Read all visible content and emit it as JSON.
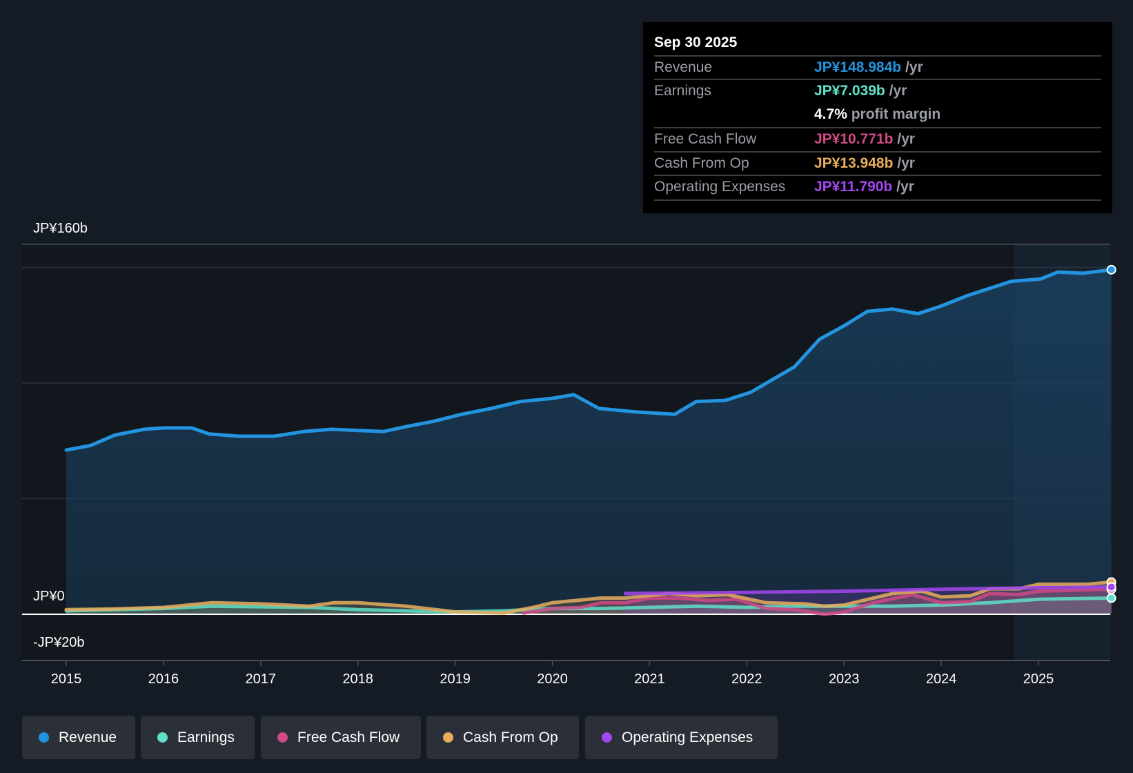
{
  "tooltip": {
    "date": "Sep 30 2025",
    "rows": [
      {
        "label": "Revenue",
        "value": "JP¥148.984b",
        "unit": "/yr",
        "color": "#2394df"
      },
      {
        "label": "Earnings",
        "value": "JP¥7.039b",
        "unit": "/yr",
        "color": "#5ee1c8"
      },
      {
        "label": "",
        "value": "4.7%",
        "unit": "profit margin",
        "color": "#ffffff"
      },
      {
        "label": "Free Cash Flow",
        "value": "JP¥10.771b",
        "unit": "/yr",
        "color": "#cf4a86"
      },
      {
        "label": "Cash From Op",
        "value": "JP¥13.948b",
        "unit": "/yr",
        "color": "#e8ad5d"
      },
      {
        "label": "Operating Expenses",
        "value": "JP¥11.790b",
        "unit": "/yr",
        "color": "#a347ee"
      }
    ]
  },
  "chart_data": {
    "type": "area",
    "title": "",
    "ylabel": "",
    "xlabel": "",
    "ylim": [
      -20,
      160
    ],
    "y_tick_labels": {
      "top": "JP¥160b",
      "zero": "JP¥0",
      "bottom": "-JP¥20b"
    },
    "gridlines": [
      50,
      100,
      150,
      160
    ],
    "x_ticks": [
      "2015",
      "2016",
      "2017",
      "2018",
      "2019",
      "2020",
      "2021",
      "2022",
      "2023",
      "2024",
      "2025"
    ],
    "forecast_shade_from": 2024.75,
    "series": [
      {
        "name": "Revenue",
        "color": "#2394df",
        "x": [
          2015,
          2015.25,
          2015.5,
          2015.8,
          2016,
          2016.29,
          2016.47,
          2016.77,
          2017.14,
          2017.44,
          2017.73,
          2018.26,
          2018.48,
          2018.78,
          2019.07,
          2019.37,
          2019.67,
          2020,
          2020.22,
          2020.48,
          2020.86,
          2021.26,
          2021.48,
          2021.78,
          2022.04,
          2022.49,
          2022.75,
          2023.01,
          2023.24,
          2023.5,
          2023.76,
          2023.98,
          2024.28,
          2024.72,
          2025.02,
          2025.2,
          2025.46,
          2025.75
        ],
        "values": [
          71,
          73,
          77.5,
          80,
          80.6,
          80.6,
          78,
          77,
          77,
          79,
          80,
          79,
          81,
          83.5,
          86.5,
          89,
          92,
          93.4,
          95,
          89,
          87.5,
          86.5,
          92,
          92.5,
          96,
          107,
          119,
          125,
          131,
          132,
          130,
          133,
          138,
          144,
          145,
          148,
          147.5,
          149
        ]
      },
      {
        "name": "Earnings",
        "color": "#5ee1c8",
        "x": [
          2015,
          2016,
          2016.5,
          2017.5,
          2018,
          2018.5,
          2019,
          2019.5,
          2020,
          2020.5,
          2021,
          2021.5,
          2022,
          2022.5,
          2023,
          2023.5,
          2024,
          2024.5,
          2025,
          2025.75
        ],
        "values": [
          1.5,
          2.5,
          3.5,
          3,
          2,
          1.5,
          1,
          1.5,
          2.5,
          2.5,
          3,
          3.5,
          3,
          3.5,
          3.5,
          3.5,
          4,
          5,
          6.5,
          7.0
        ]
      },
      {
        "name": "Free Cash Flow",
        "color": "#cf4a86",
        "x": [
          2019.7,
          2020,
          2020.3,
          2020.5,
          2020.75,
          2021,
          2021.3,
          2021.6,
          2021.9,
          2022.2,
          2022.5,
          2022.8,
          2023,
          2023.3,
          2023.7,
          2024,
          2024.3,
          2024.5,
          2024.8,
          2025,
          2025.75
        ],
        "values": [
          0.5,
          2.5,
          3,
          5,
          5,
          7,
          7,
          6,
          6.5,
          2.5,
          2,
          0,
          1,
          5,
          8.5,
          5,
          5.5,
          9,
          8.5,
          10,
          10.8
        ]
      },
      {
        "name": "Cash From Op",
        "color": "#e8ad5d",
        "x": [
          2015,
          2015.5,
          2016,
          2016.5,
          2017,
          2017.5,
          2017.75,
          2018,
          2018.5,
          2019,
          2019.5,
          2019.8,
          2020,
          2020.5,
          2020.75,
          2021.2,
          2021.5,
          2021.8,
          2022.2,
          2022.6,
          2022.8,
          2023,
          2023.5,
          2023.8,
          2024,
          2024.3,
          2024.5,
          2024.8,
          2025,
          2025.5,
          2025.75
        ],
        "values": [
          2,
          2.3,
          3,
          5,
          4.5,
          3.5,
          5,
          5,
          3.5,
          1,
          0.5,
          3,
          5,
          7,
          7,
          9,
          8,
          8.5,
          5,
          4.5,
          3.5,
          4,
          9,
          10,
          7.5,
          8,
          11,
          11,
          13,
          13,
          13.9
        ]
      },
      {
        "name": "Operating Expenses",
        "color": "#a347ee",
        "x": [
          2020.75,
          2022,
          2023,
          2024,
          2025,
          2025.75
        ],
        "values": [
          9,
          9.5,
          10,
          10.8,
          11.5,
          11.8
        ]
      }
    ]
  },
  "legend": [
    {
      "label": "Revenue",
      "color": "#2394df"
    },
    {
      "label": "Earnings",
      "color": "#5ee1c8"
    },
    {
      "label": "Free Cash Flow",
      "color": "#cf4a86"
    },
    {
      "label": "Cash From Op",
      "color": "#e8ad5d"
    },
    {
      "label": "Operating Expenses",
      "color": "#a347ee"
    }
  ]
}
